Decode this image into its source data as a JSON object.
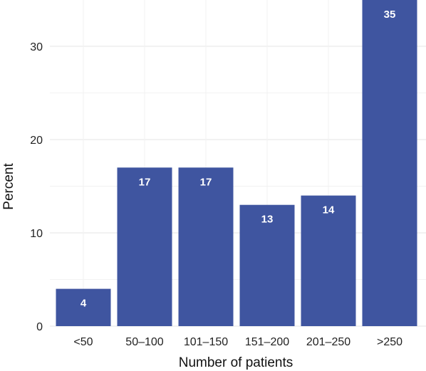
{
  "chart_data": {
    "type": "bar",
    "categories": [
      "<50",
      "50–100",
      "101–150",
      "151–200",
      "201–250",
      ">250"
    ],
    "values": [
      4,
      17,
      17,
      13,
      14,
      35
    ],
    "data_labels": [
      "4",
      "17",
      "17",
      "13",
      "14",
      "35"
    ],
    "xlabel": "Number of patients",
    "ylabel": "Percent",
    "ylim": [
      0,
      35
    ],
    "yticks": [
      0,
      10,
      20,
      30
    ],
    "ytick_labels": [
      "0",
      "10",
      "20",
      "30"
    ],
    "grid": true,
    "legend": "none",
    "colors": {
      "bar": "#3f55a0",
      "label": "#ffffff"
    }
  }
}
